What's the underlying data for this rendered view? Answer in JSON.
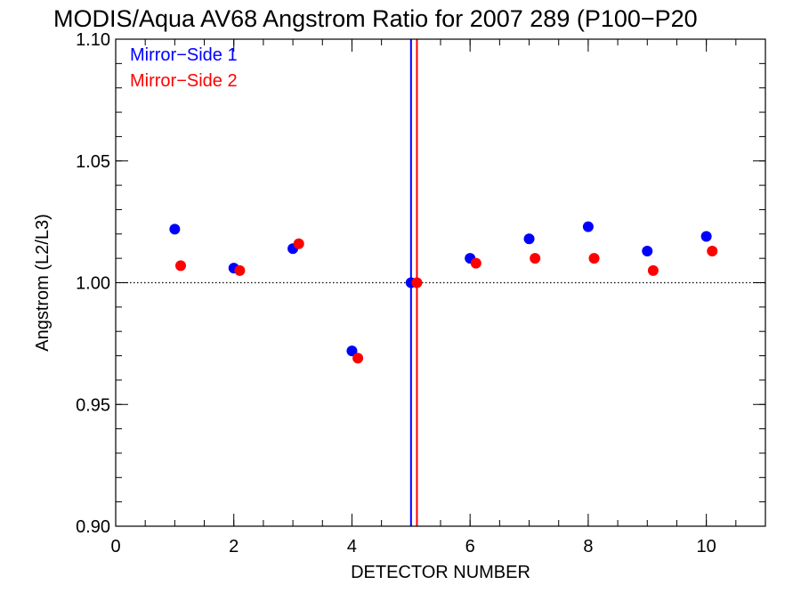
{
  "chart_data": {
    "type": "scatter",
    "title": "MODIS/Aqua AV68 Angstrom Ratio for 2007 289 (P100−P20",
    "xlabel": "DETECTOR NUMBER",
    "ylabel": "Angstrom (L2/L3)",
    "xlim": [
      0,
      11
    ],
    "ylim": [
      0.9,
      1.1
    ],
    "x_ticks": [
      0,
      2,
      4,
      6,
      8,
      10
    ],
    "x_tick_labels": [
      "0",
      "2",
      "4",
      "6",
      "8",
      "10"
    ],
    "y_ticks": [
      0.9,
      0.95,
      1.0,
      1.05,
      1.1
    ],
    "y_tick_labels": [
      "0.90",
      "0.95",
      "1.00",
      "1.05",
      "1.10"
    ],
    "x_minor_step": 0.5,
    "y_minor_step": 0.01,
    "reference_line_y": 1.0,
    "legend_position": "top-left",
    "series": [
      {
        "name": "Mirror−Side 1",
        "color": "#0000ff",
        "x": [
          1,
          2,
          3,
          4,
          5,
          6,
          7,
          8,
          9,
          10
        ],
        "y": [
          1.022,
          1.006,
          1.014,
          0.972,
          1.0,
          1.01,
          1.018,
          1.023,
          1.013,
          1.019
        ],
        "vertical_line_x": 5.0
      },
      {
        "name": "Mirror−Side 2",
        "color": "#ff0000",
        "x": [
          1.1,
          2.1,
          3.1,
          4.1,
          5.1,
          6.1,
          7.1,
          8.1,
          9.1,
          10.1
        ],
        "y": [
          1.007,
          1.005,
          1.016,
          0.969,
          1.0,
          1.008,
          1.01,
          1.01,
          1.005,
          1.013
        ],
        "vertical_line_x": 5.1
      }
    ]
  }
}
